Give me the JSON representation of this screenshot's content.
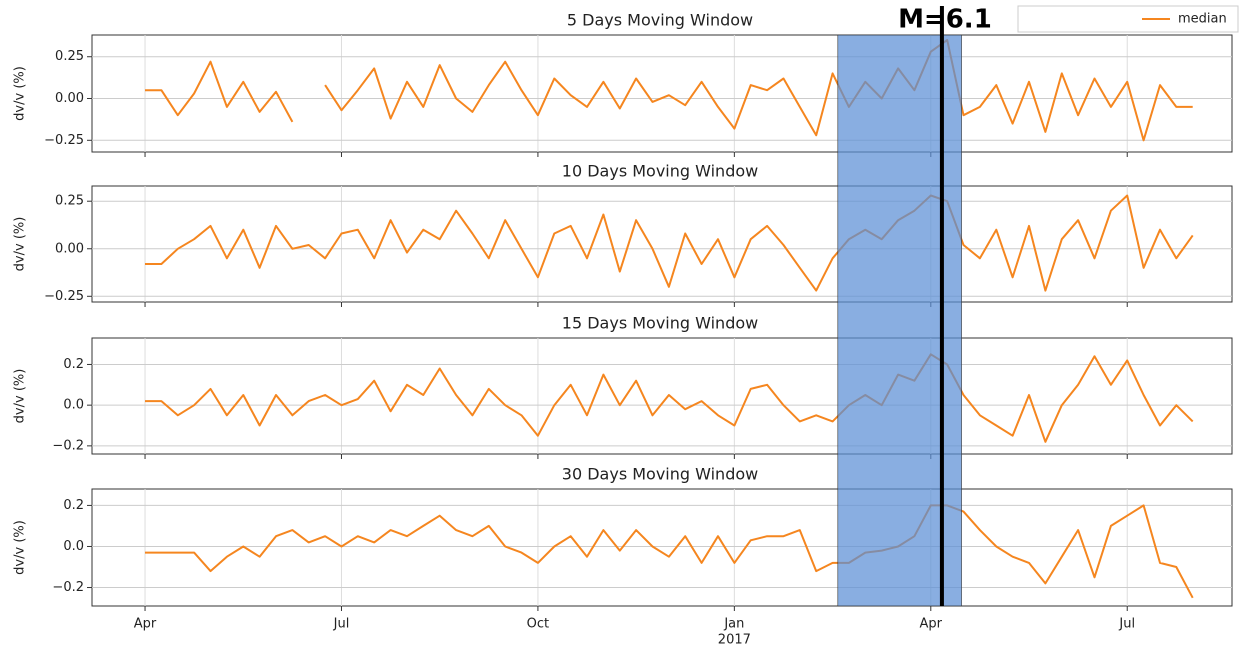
{
  "highlight": {
    "text": "M=6.1",
    "x": 12.17,
    "span": [
      10.58,
      12.47
    ]
  },
  "chart_data": [
    {
      "type": "line",
      "title": "5 Days Moving Window",
      "ylabel": "dv/v (%)",
      "legend": "upper right",
      "grid": true,
      "xlim": [
        -0.81,
        16.6
      ],
      "ylim": [
        -0.32,
        0.38
      ],
      "yticks": [
        {
          "value": 0.25,
          "label": "0.25"
        },
        {
          "value": 0,
          "label": "0.00"
        },
        {
          "value": -0.25,
          "label": "−0.25"
        }
      ],
      "x": [
        0,
        0.25,
        0.5,
        0.75,
        1,
        1.25,
        1.5,
        1.75,
        2,
        2.25,
        2.5,
        2.75,
        3,
        3.25,
        3.5,
        3.75,
        4,
        4.25,
        4.5,
        4.75,
        5,
        5.25,
        5.5,
        5.75,
        6,
        6.25,
        6.5,
        6.75,
        7,
        7.25,
        7.5,
        7.75,
        8,
        8.25,
        8.5,
        8.75,
        9,
        9.25,
        9.5,
        9.75,
        10,
        10.25,
        10.5,
        10.75,
        11,
        11.25,
        11.5,
        11.75,
        12,
        12.25,
        12.5,
        12.75,
        13,
        13.25,
        13.5,
        13.75,
        14,
        14.25,
        14.5,
        14.75,
        15,
        15.25,
        15.5,
        15.75,
        16
      ],
      "series": [
        {
          "name": "median",
          "color": "#f5861f",
          "values": [
            0.05,
            0.05,
            -0.1,
            0.03,
            0.22,
            -0.05,
            0.1,
            -0.08,
            0.04,
            -0.14,
            null,
            0.08,
            -0.07,
            0.05,
            0.18,
            -0.12,
            0.1,
            -0.05,
            0.2,
            0.0,
            -0.08,
            0.08,
            0.22,
            0.05,
            -0.1,
            0.12,
            0.02,
            -0.05,
            0.1,
            -0.06,
            0.12,
            -0.02,
            0.02,
            -0.04,
            0.1,
            -0.05,
            -0.18,
            0.08,
            0.05,
            0.12,
            -0.05,
            -0.22,
            0.15,
            -0.05,
            0.1,
            0.0,
            0.18,
            0.05,
            0.28,
            0.35,
            -0.1,
            -0.05,
            0.08,
            -0.15,
            0.1,
            -0.2,
            0.15,
            -0.1,
            0.12,
            -0.05,
            0.1,
            -0.25,
            0.08,
            -0.05,
            -0.05
          ]
        }
      ]
    },
    {
      "type": "line",
      "title": "10 Days Moving Window",
      "ylabel": "dv/v (%)",
      "grid": true,
      "xlim": [
        -0.81,
        16.6
      ],
      "ylim": [
        -0.28,
        0.33
      ],
      "yticks": [
        {
          "value": 0.25,
          "label": "0.25"
        },
        {
          "value": 0,
          "label": "0.00"
        },
        {
          "value": -0.25,
          "label": "−0.25"
        }
      ],
      "x": [
        0,
        0.25,
        0.5,
        0.75,
        1,
        1.25,
        1.5,
        1.75,
        2,
        2.25,
        2.5,
        2.75,
        3,
        3.25,
        3.5,
        3.75,
        4,
        4.25,
        4.5,
        4.75,
        5,
        5.25,
        5.5,
        5.75,
        6,
        6.25,
        6.5,
        6.75,
        7,
        7.25,
        7.5,
        7.75,
        8,
        8.25,
        8.5,
        8.75,
        9,
        9.25,
        9.5,
        9.75,
        10,
        10.25,
        10.5,
        10.75,
        11,
        11.25,
        11.5,
        11.75,
        12,
        12.25,
        12.5,
        12.75,
        13,
        13.25,
        13.5,
        13.75,
        14,
        14.25,
        14.5,
        14.75,
        15,
        15.25,
        15.5,
        15.75,
        16
      ],
      "series": [
        {
          "color": "#f5861f",
          "values": [
            -0.08,
            -0.08,
            0.0,
            0.05,
            0.12,
            -0.05,
            0.1,
            -0.1,
            0.12,
            0.0,
            0.02,
            -0.05,
            0.08,
            0.1,
            -0.05,
            0.15,
            -0.02,
            0.1,
            0.05,
            0.2,
            0.08,
            -0.05,
            0.15,
            0.0,
            -0.15,
            0.08,
            0.12,
            -0.05,
            0.18,
            -0.12,
            0.15,
            0.0,
            -0.2,
            0.08,
            -0.08,
            0.05,
            -0.15,
            0.05,
            0.12,
            0.02,
            -0.1,
            -0.22,
            -0.05,
            0.05,
            0.1,
            0.05,
            0.15,
            0.2,
            0.28,
            0.25,
            0.02,
            -0.05,
            0.1,
            -0.15,
            0.12,
            -0.22,
            0.05,
            0.15,
            -0.05,
            0.2,
            0.28,
            -0.1,
            0.1,
            -0.05,
            0.07
          ]
        }
      ]
    },
    {
      "type": "line",
      "title": "15 Days Moving Window",
      "ylabel": "dv/v (%)",
      "grid": true,
      "xlim": [
        -0.81,
        16.6
      ],
      "ylim": [
        -0.24,
        0.33
      ],
      "yticks": [
        0.2,
        {
          "value": 0,
          "label": "0.0"
        },
        {
          "value": -0.2,
          "label": "−0.2"
        }
      ],
      "x": [
        0,
        0.25,
        0.5,
        0.75,
        1,
        1.25,
        1.5,
        1.75,
        2,
        2.25,
        2.5,
        2.75,
        3,
        3.25,
        3.5,
        3.75,
        4,
        4.25,
        4.5,
        4.75,
        5,
        5.25,
        5.5,
        5.75,
        6,
        6.25,
        6.5,
        6.75,
        7,
        7.25,
        7.5,
        7.75,
        8,
        8.25,
        8.5,
        8.75,
        9,
        9.25,
        9.5,
        9.75,
        10,
        10.25,
        10.5,
        10.75,
        11,
        11.25,
        11.5,
        11.75,
        12,
        12.25,
        12.5,
        12.75,
        13,
        13.25,
        13.5,
        13.75,
        14,
        14.25,
        14.5,
        14.75,
        15,
        15.25,
        15.5,
        15.75,
        16
      ],
      "series": [
        {
          "color": "#f5861f",
          "values": [
            0.02,
            0.02,
            -0.05,
            0.0,
            0.08,
            -0.05,
            0.05,
            -0.1,
            0.05,
            -0.05,
            0.02,
            0.05,
            0.0,
            0.03,
            0.12,
            -0.03,
            0.1,
            0.05,
            0.18,
            0.05,
            -0.05,
            0.08,
            0.0,
            -0.05,
            -0.15,
            0.0,
            0.1,
            -0.05,
            0.15,
            0.0,
            0.12,
            -0.05,
            0.05,
            -0.02,
            0.02,
            -0.05,
            -0.1,
            0.08,
            0.1,
            0.0,
            -0.08,
            -0.05,
            -0.08,
            0.0,
            0.05,
            0.0,
            0.15,
            0.12,
            0.25,
            0.2,
            0.05,
            -0.05,
            -0.1,
            -0.15,
            0.05,
            -0.18,
            0.0,
            0.1,
            0.24,
            0.1,
            0.22,
            0.05,
            -0.1,
            0.0,
            -0.08
          ]
        }
      ]
    },
    {
      "type": "line",
      "title": "30 Days Moving Window",
      "ylabel": "dv/v (%)",
      "grid": true,
      "xlim": [
        -0.81,
        16.6
      ],
      "ylim": [
        -0.29,
        0.28
      ],
      "yticks": [
        0.2,
        {
          "value": 0,
          "label": "0.0"
        },
        {
          "value": -0.2,
          "label": "−0.2"
        }
      ],
      "xticks": [
        {
          "value": 0,
          "label": "Apr"
        },
        {
          "value": 3,
          "label": "Jul"
        },
        {
          "value": 6,
          "label": "Oct"
        },
        {
          "value": 9,
          "label": "Jan"
        },
        {
          "value": 12,
          "label": "Apr"
        },
        {
          "value": 15,
          "label": "Jul"
        }
      ],
      "year_label": {
        "value": 9,
        "label": "2017"
      },
      "x": [
        0,
        0.25,
        0.5,
        0.75,
        1,
        1.25,
        1.5,
        1.75,
        2,
        2.25,
        2.5,
        2.75,
        3,
        3.25,
        3.5,
        3.75,
        4,
        4.25,
        4.5,
        4.75,
        5,
        5.25,
        5.5,
        5.75,
        6,
        6.25,
        6.5,
        6.75,
        7,
        7.25,
        7.5,
        7.75,
        8,
        8.25,
        8.5,
        8.75,
        9,
        9.25,
        9.5,
        9.75,
        10,
        10.25,
        10.5,
        10.75,
        11,
        11.25,
        11.5,
        11.75,
        12,
        12.25,
        12.5,
        12.75,
        13,
        13.25,
        13.5,
        13.75,
        14,
        14.25,
        14.5,
        14.75,
        15,
        15.25,
        15.5,
        15.75,
        16
      ],
      "series": [
        {
          "color": "#f5861f",
          "values": [
            -0.03,
            -0.03,
            -0.03,
            -0.03,
            -0.12,
            -0.05,
            0.0,
            -0.05,
            0.05,
            0.08,
            0.02,
            0.05,
            0.0,
            0.05,
            0.02,
            0.08,
            0.05,
            0.1,
            0.15,
            0.08,
            0.05,
            0.1,
            0.0,
            -0.03,
            -0.08,
            0.0,
            0.05,
            -0.05,
            0.08,
            -0.02,
            0.08,
            0.0,
            -0.05,
            0.05,
            -0.08,
            0.05,
            -0.08,
            0.03,
            0.05,
            0.05,
            0.08,
            -0.12,
            -0.08,
            -0.08,
            -0.03,
            -0.02,
            0.0,
            0.05,
            0.2,
            0.2,
            0.17,
            0.08,
            0.0,
            -0.05,
            -0.08,
            -0.18,
            -0.05,
            0.08,
            -0.15,
            0.1,
            0.15,
            0.2,
            -0.08,
            -0.1,
            -0.25
          ]
        }
      ]
    }
  ]
}
